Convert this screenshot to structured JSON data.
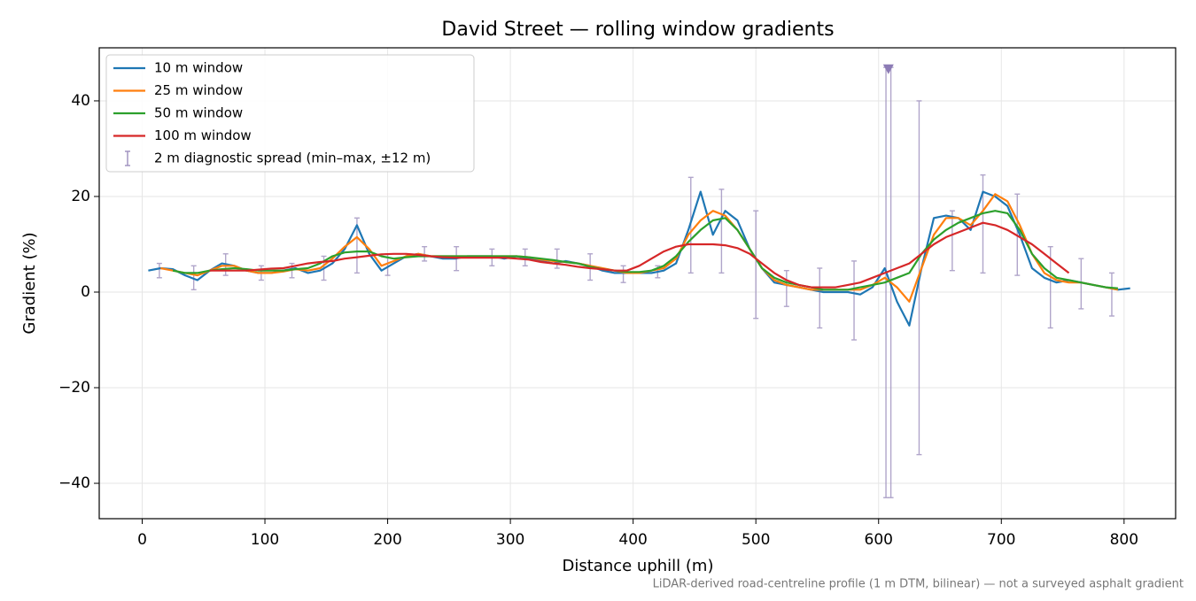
{
  "chart_data": {
    "type": "line",
    "title": "David Street — rolling window gradients",
    "xlabel": "Distance uphill (m)",
    "ylabel": "Gradient (%)",
    "footnote": "LiDAR-derived road-centreline profile (1 m DTM, bilinear) — not a surveyed asphalt gradient",
    "xlim": [
      -35,
      842
    ],
    "ylim": [
      -47.4,
      51.1
    ],
    "xticks": [
      0,
      100,
      200,
      300,
      400,
      500,
      600,
      700,
      800
    ],
    "yticks": [
      {
        "value": -40,
        "label": "−40"
      },
      {
        "value": -20,
        "label": "−20"
      },
      0,
      20,
      40
    ],
    "grid": true,
    "legend": "upper left",
    "x": [
      5,
      15,
      25,
      35,
      45,
      55,
      65,
      75,
      85,
      95,
      105,
      115,
      125,
      135,
      145,
      155,
      165,
      175,
      185,
      195,
      205,
      215,
      225,
      235,
      245,
      255,
      265,
      275,
      285,
      295,
      305,
      315,
      325,
      335,
      345,
      355,
      365,
      375,
      385,
      395,
      405,
      415,
      425,
      435,
      445,
      455,
      465,
      475,
      485,
      495,
      505,
      515,
      525,
      535,
      545,
      555,
      565,
      575,
      585,
      595,
      605,
      615,
      625,
      635,
      645,
      655,
      665,
      675,
      685,
      695,
      705,
      715,
      725,
      735,
      745,
      755,
      765,
      775,
      785,
      795,
      805
    ],
    "series": [
      {
        "name": "10 m window",
        "color": "#1f77b4",
        "values": [
          4.5,
          5,
          4.8,
          3.5,
          2.5,
          4.5,
          6,
          5.5,
          4.5,
          4,
          4,
          4.5,
          5,
          4,
          4.5,
          6,
          9,
          14,
          8,
          4.5,
          6,
          7.5,
          8,
          7.5,
          7,
          7,
          7.5,
          7.5,
          7.5,
          7,
          7.5,
          7,
          6.5,
          6,
          6.5,
          6,
          5.5,
          4.5,
          4,
          4,
          4,
          4,
          4.5,
          6,
          13,
          21,
          12,
          17,
          15,
          9,
          5,
          2,
          1.5,
          1,
          0.5,
          0,
          0,
          0,
          -0.5,
          1,
          5,
          -2,
          -7,
          5,
          15.5,
          16,
          15.5,
          13,
          21,
          20,
          18,
          12,
          5,
          3,
          2,
          2.5,
          2,
          1.5,
          1,
          0.5,
          0.8
        ]
      },
      {
        "name": "25 m window",
        "color": "#ff7f0e",
        "values": [
          null,
          5,
          4.5,
          4,
          3.5,
          4.5,
          5.5,
          5.5,
          4.5,
          4,
          4,
          4.3,
          4.8,
          4.5,
          5,
          7,
          9.5,
          11.5,
          9,
          5.5,
          6.5,
          7.5,
          8,
          7.5,
          7.5,
          7.5,
          7.5,
          7.5,
          7.5,
          7.5,
          7.5,
          7.3,
          6.8,
          6.5,
          6.3,
          6,
          5.5,
          5,
          4.5,
          4,
          4,
          4.5,
          5,
          7,
          12,
          15,
          17,
          16,
          13,
          9,
          5,
          2.5,
          1.5,
          1,
          0.5,
          0.5,
          0.5,
          0.5,
          0.5,
          1.5,
          3,
          1,
          -2,
          5,
          12,
          15.5,
          15.5,
          14,
          17,
          20.5,
          19,
          14,
          8,
          4,
          2.5,
          2,
          2,
          1.5,
          1,
          0.5,
          null
        ]
      },
      {
        "name": "50 m window",
        "color": "#2ca02c",
        "values": [
          null,
          null,
          4.5,
          4,
          4,
          4.5,
          4.8,
          5,
          4.8,
          4.5,
          4.5,
          4.5,
          4.8,
          5,
          6,
          7.5,
          8.3,
          8.5,
          8.5,
          7.5,
          7,
          7.3,
          7.5,
          7.5,
          7.5,
          7.5,
          7.5,
          7.5,
          7.5,
          7.5,
          7.5,
          7.3,
          7,
          6.7,
          6.3,
          6,
          5.3,
          4.8,
          4.5,
          4.2,
          4.2,
          4.5,
          5.5,
          7.5,
          10.5,
          13,
          15,
          15.5,
          13,
          9,
          5,
          3,
          2,
          1.5,
          1,
          0.5,
          0.5,
          0.5,
          1,
          1.5,
          2,
          3,
          4,
          8,
          11,
          13,
          14.5,
          15.5,
          16.5,
          17,
          16.5,
          13,
          8,
          5,
          3,
          2.5,
          2,
          1.5,
          1,
          0.8,
          null
        ]
      },
      {
        "name": "100 m window",
        "color": "#d62728",
        "values": [
          null,
          null,
          null,
          null,
          null,
          4.5,
          4.5,
          4.5,
          4.5,
          4.7,
          4.9,
          5,
          5.5,
          6,
          6.3,
          6.5,
          7,
          7.3,
          7.6,
          7.9,
          8,
          8,
          7.8,
          7.5,
          7.3,
          7.2,
          7.2,
          7.2,
          7.2,
          7.2,
          7,
          6.8,
          6.3,
          6,
          5.7,
          5.3,
          5,
          4.8,
          4.5,
          4.5,
          5.5,
          7,
          8.5,
          9.5,
          10,
          10,
          10,
          9.8,
          9.2,
          8,
          6,
          4,
          2.5,
          1.5,
          1,
          1,
          1,
          1.5,
          2,
          3,
          4,
          5,
          6,
          8,
          10,
          11.5,
          12.5,
          13.5,
          14.5,
          14,
          13,
          11.5,
          10,
          8,
          6,
          4,
          null,
          null,
          null,
          null,
          null
        ]
      }
    ],
    "errorbars": {
      "name": "2 m diagnostic spread (min–max, ±12 m)",
      "color": "#9d8fbd",
      "x": [
        14,
        42,
        68,
        97,
        122,
        148,
        175,
        200,
        230,
        256,
        285,
        312,
        338,
        365,
        392,
        420,
        447,
        472,
        500,
        525,
        552,
        580,
        606,
        610,
        633,
        660,
        685,
        713,
        740,
        765,
        790
      ],
      "low": [
        3,
        0.5,
        3.5,
        2.5,
        3,
        2.5,
        4,
        3.5,
        6.5,
        4.5,
        5.5,
        5.5,
        5,
        2.5,
        2,
        3,
        4,
        4,
        -5.5,
        -3,
        -7.5,
        -10,
        -43,
        -43,
        -34,
        4.5,
        4,
        3.5,
        -7.5,
        -3.5,
        -5
      ],
      "high": [
        6,
        5.5,
        8,
        5.5,
        6,
        7.5,
        15.5,
        8,
        9.5,
        9.5,
        9,
        9,
        9,
        8,
        5.5,
        5.5,
        24,
        21.5,
        17,
        4.5,
        5,
        6.5,
        47,
        47,
        40,
        17,
        24.5,
        20.5,
        9.5,
        7,
        4
      ],
      "clipped_markers": [
        {
          "x": 608,
          "y": 46.7
        }
      ]
    }
  }
}
